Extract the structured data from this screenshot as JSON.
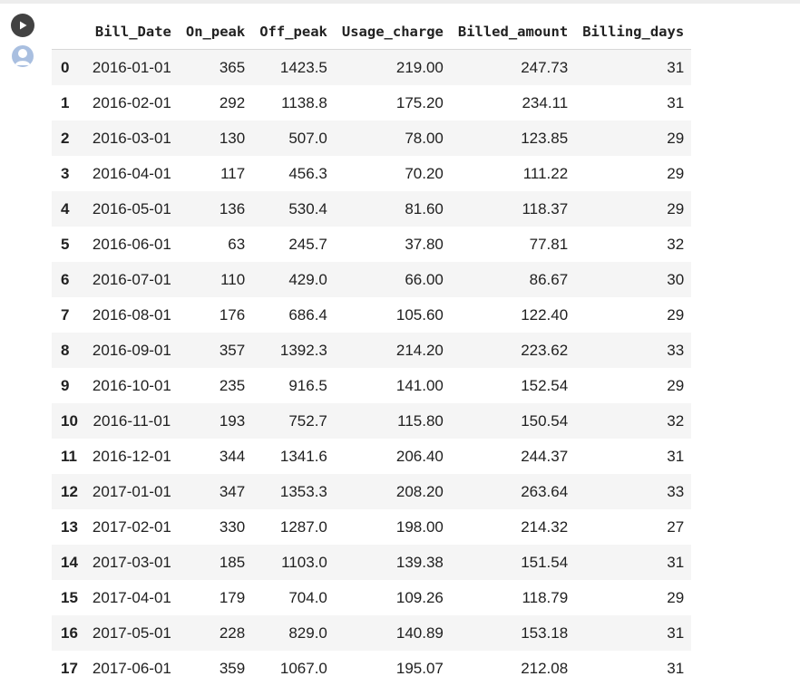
{
  "table": {
    "columns": [
      "",
      "Bill_Date",
      "On_peak",
      "Off_peak",
      "Usage_charge",
      "Billed_amount",
      "Billing_days"
    ],
    "rows": [
      [
        "0",
        "2016-01-01",
        "365",
        "1423.5",
        "219.00",
        "247.73",
        "31"
      ],
      [
        "1",
        "2016-02-01",
        "292",
        "1138.8",
        "175.20",
        "234.11",
        "31"
      ],
      [
        "2",
        "2016-03-01",
        "130",
        "507.0",
        "78.00",
        "123.85",
        "29"
      ],
      [
        "3",
        "2016-04-01",
        "117",
        "456.3",
        "70.20",
        "111.22",
        "29"
      ],
      [
        "4",
        "2016-05-01",
        "136",
        "530.4",
        "81.60",
        "118.37",
        "29"
      ],
      [
        "5",
        "2016-06-01",
        "63",
        "245.7",
        "37.80",
        "77.81",
        "32"
      ],
      [
        "6",
        "2016-07-01",
        "110",
        "429.0",
        "66.00",
        "86.67",
        "30"
      ],
      [
        "7",
        "2016-08-01",
        "176",
        "686.4",
        "105.60",
        "122.40",
        "29"
      ],
      [
        "8",
        "2016-09-01",
        "357",
        "1392.3",
        "214.20",
        "223.62",
        "33"
      ],
      [
        "9",
        "2016-10-01",
        "235",
        "916.5",
        "141.00",
        "152.54",
        "29"
      ],
      [
        "10",
        "2016-11-01",
        "193",
        "752.7",
        "115.80",
        "150.54",
        "32"
      ],
      [
        "11",
        "2016-12-01",
        "344",
        "1341.6",
        "206.40",
        "244.37",
        "31"
      ],
      [
        "12",
        "2017-01-01",
        "347",
        "1353.3",
        "208.20",
        "263.64",
        "33"
      ],
      [
        "13",
        "2017-02-01",
        "330",
        "1287.0",
        "198.00",
        "214.32",
        "27"
      ],
      [
        "14",
        "2017-03-01",
        "185",
        "1103.0",
        "139.38",
        "151.54",
        "31"
      ],
      [
        "15",
        "2017-04-01",
        "179",
        "704.0",
        "109.26",
        "118.79",
        "29"
      ],
      [
        "16",
        "2017-05-01",
        "228",
        "829.0",
        "140.89",
        "153.18",
        "31"
      ],
      [
        "17",
        "2017-06-01",
        "359",
        "1067.0",
        "195.07",
        "212.08",
        "31"
      ]
    ]
  },
  "icons": {
    "run": "play-circle-icon",
    "avatar": "user-avatar-icon"
  },
  "colors": {
    "stripe": "#f5f5f5",
    "run_button": "#424242",
    "avatar": "#a9bfe0"
  }
}
